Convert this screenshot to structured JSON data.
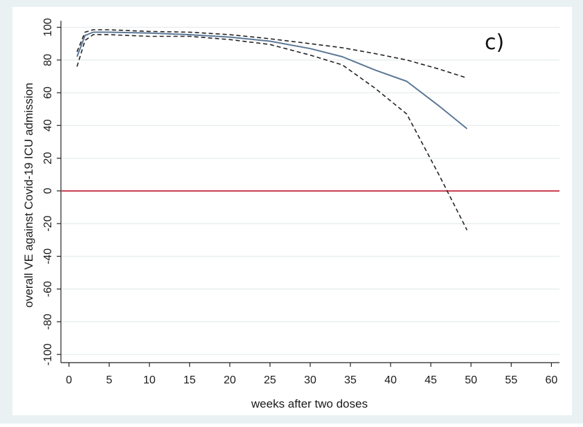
{
  "chart_data": {
    "type": "line",
    "panel_label": "c)",
    "xlabel": "weeks after two doses",
    "ylabel": "overall VE against Covid-19 ICU admission",
    "xlim": [
      -1,
      61
    ],
    "ylim": [
      -105,
      104
    ],
    "xticks": [
      0,
      5,
      10,
      15,
      20,
      25,
      30,
      35,
      40,
      45,
      50,
      55,
      60
    ],
    "yticks": [
      100,
      80,
      60,
      40,
      20,
      0,
      -20,
      -40,
      -60,
      -80,
      -100
    ],
    "grid": true,
    "reference_line": {
      "y": 0,
      "color": "#c8384c"
    },
    "series": [
      {
        "style": "solid",
        "color": "#5b7896",
        "x": [
          1,
          2,
          3,
          5,
          10,
          15,
          20,
          25,
          30,
          34,
          38,
          42,
          46,
          49.5
        ],
        "y": [
          82,
          95,
          97,
          97,
          96.5,
          95.5,
          94,
          91.5,
          87,
          82,
          74,
          67,
          52,
          38
        ]
      },
      {
        "style": "dashed",
        "color": "#222222",
        "x": [
          1,
          2,
          3,
          5,
          10,
          15,
          20,
          25,
          30,
          34,
          38,
          42,
          46,
          49.5
        ],
        "y": [
          85,
          97,
          98.5,
          98.5,
          97.5,
          97,
          95.5,
          93,
          90,
          87.5,
          84,
          80,
          74.5,
          69
        ]
      },
      {
        "style": "dashed",
        "color": "#222222",
        "x": [
          1,
          2,
          3,
          5,
          10,
          15,
          20,
          25,
          30,
          34,
          38,
          42,
          46,
          49.5
        ],
        "y": [
          76,
          92,
          95.5,
          95.5,
          94.5,
          94.5,
          92.5,
          89.5,
          83,
          77,
          63,
          47,
          10,
          -24
        ]
      }
    ]
  }
}
